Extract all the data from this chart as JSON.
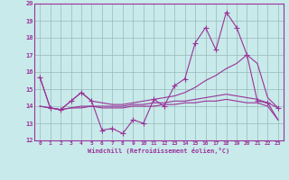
{
  "x": [
    0,
    1,
    2,
    3,
    4,
    5,
    6,
    7,
    8,
    9,
    10,
    11,
    12,
    13,
    14,
    15,
    16,
    17,
    18,
    19,
    20,
    21,
    22,
    23
  ],
  "line1": [
    15.7,
    13.9,
    13.8,
    14.3,
    14.8,
    14.3,
    12.6,
    12.7,
    12.4,
    13.2,
    13.0,
    14.4,
    14.0,
    15.2,
    15.6,
    17.7,
    18.6,
    17.3,
    19.5,
    18.6,
    17.0,
    14.3,
    14.2,
    13.9
  ],
  "line2": [
    15.7,
    13.9,
    13.8,
    14.3,
    14.8,
    14.3,
    14.2,
    14.1,
    14.1,
    14.2,
    14.3,
    14.4,
    14.5,
    14.6,
    14.8,
    15.1,
    15.5,
    15.8,
    16.2,
    16.5,
    17.0,
    16.5,
    14.5,
    13.9
  ],
  "line3": [
    14.0,
    13.9,
    13.8,
    13.9,
    14.0,
    14.0,
    14.0,
    14.0,
    14.0,
    14.1,
    14.1,
    14.2,
    14.2,
    14.3,
    14.3,
    14.4,
    14.5,
    14.6,
    14.7,
    14.6,
    14.5,
    14.4,
    14.2,
    13.2
  ],
  "line4": [
    14.0,
    13.9,
    13.8,
    13.9,
    13.9,
    14.0,
    13.9,
    13.9,
    13.9,
    14.0,
    14.0,
    14.0,
    14.1,
    14.1,
    14.2,
    14.2,
    14.3,
    14.3,
    14.4,
    14.3,
    14.2,
    14.2,
    14.0,
    13.2
  ],
  "color": "#993399",
  "bg_color": "#c8eaea",
  "grid_color": "#9ab8b8",
  "xlabel": "Windchill (Refroidissement éolien,°C)",
  "ylim": [
    12,
    20
  ],
  "xlim": [
    -0.5,
    23.5
  ],
  "yticks": [
    12,
    13,
    14,
    15,
    16,
    17,
    18,
    19,
    20
  ],
  "xticks": [
    0,
    1,
    2,
    3,
    4,
    5,
    6,
    7,
    8,
    9,
    10,
    11,
    12,
    13,
    14,
    15,
    16,
    17,
    18,
    19,
    20,
    21,
    22,
    23
  ],
  "marker": "+",
  "markersize": 4,
  "linewidth": 0.8
}
